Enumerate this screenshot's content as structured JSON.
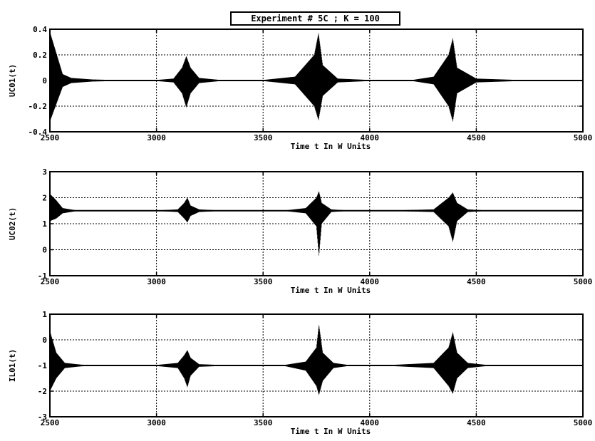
{
  "title": "Experiment # 5C ; K = 100",
  "chart_data": [
    {
      "type": "line",
      "ylabel": "UC01(t)",
      "xlabel": "Time t In W Units",
      "xlim": [
        2500,
        5000
      ],
      "ylim": [
        -0.4,
        0.4
      ],
      "xticks": [
        2500,
        3000,
        3500,
        4000,
        4500,
        5000
      ],
      "yticks": [
        -0.4,
        -0.2,
        0,
        0.2,
        0.4
      ],
      "ytick_labels": [
        "-0.4",
        "-0.2",
        "0",
        "0.2",
        "0.4"
      ],
      "grid": true,
      "baseline": 0,
      "envelope_x": [
        2500,
        2560,
        2600,
        2700,
        2800,
        3000,
        3080,
        3120,
        3140,
        3160,
        3200,
        3300,
        3500,
        3650,
        3740,
        3760,
        3780,
        3850,
        4000,
        4200,
        4300,
        4370,
        4390,
        4410,
        4500,
        4700,
        5000
      ],
      "envelope_upper": [
        0.38,
        0.05,
        0.02,
        0.008,
        0.004,
        0.004,
        0.015,
        0.1,
        0.19,
        0.1,
        0.02,
        0.004,
        0.004,
        0.03,
        0.2,
        0.37,
        0.12,
        0.015,
        0.004,
        0.004,
        0.03,
        0.2,
        0.33,
        0.1,
        0.015,
        0.004,
        0.004
      ],
      "envelope_lower": [
        -0.32,
        -0.05,
        -0.02,
        -0.008,
        -0.004,
        -0.004,
        -0.015,
        -0.1,
        -0.21,
        -0.1,
        -0.02,
        -0.004,
        -0.004,
        -0.03,
        -0.2,
        -0.31,
        -0.12,
        -0.015,
        -0.004,
        -0.004,
        -0.03,
        -0.2,
        -0.32,
        -0.1,
        -0.015,
        -0.004,
        -0.004
      ]
    },
    {
      "type": "line",
      "ylabel": "UC02(t)",
      "xlabel": "Time t In W Units",
      "xlim": [
        2500,
        5000
      ],
      "ylim": [
        -1,
        3
      ],
      "xticks": [
        2500,
        3000,
        3500,
        4000,
        4500,
        5000
      ],
      "yticks": [
        -1,
        0,
        1,
        2,
        3
      ],
      "ytick_labels": [
        "-1",
        "0",
        "1",
        "2",
        "3"
      ],
      "grid": true,
      "baseline": 1.5,
      "envelope_x": [
        2500,
        2530,
        2560,
        2620,
        2700,
        3000,
        3100,
        3130,
        3145,
        3160,
        3200,
        3300,
        3600,
        3700,
        3750,
        3762,
        3775,
        3820,
        3900,
        4100,
        4300,
        4370,
        4390,
        4410,
        4460,
        4550,
        5000
      ],
      "envelope_upper": [
        2.15,
        1.9,
        1.6,
        1.52,
        1.51,
        1.51,
        1.55,
        1.8,
        2.0,
        1.7,
        1.55,
        1.51,
        1.51,
        1.6,
        2.0,
        2.25,
        1.8,
        1.55,
        1.51,
        1.51,
        1.55,
        2.0,
        2.2,
        1.8,
        1.55,
        1.51,
        1.51
      ],
      "envelope_lower": [
        1.1,
        1.2,
        1.4,
        1.48,
        1.49,
        1.49,
        1.45,
        1.2,
        1.05,
        1.3,
        1.45,
        1.49,
        1.49,
        1.4,
        0.9,
        -0.25,
        1.0,
        1.45,
        1.49,
        1.49,
        1.45,
        0.9,
        0.3,
        1.1,
        1.45,
        1.49,
        1.49
      ]
    },
    {
      "type": "line",
      "ylabel": "IL01(t)",
      "xlabel": "Time t In W Units",
      "xlim": [
        2500,
        5000
      ],
      "ylim": [
        -3,
        1
      ],
      "xticks": [
        2500,
        3000,
        3500,
        4000,
        4500,
        5000
      ],
      "yticks": [
        -3,
        -2,
        -1,
        0,
        1
      ],
      "ytick_labels": [
        "-3",
        "-2",
        "-1",
        "0",
        "1"
      ],
      "grid": true,
      "baseline": -1,
      "envelope_x": [
        2500,
        2530,
        2570,
        2650,
        2800,
        3000,
        3100,
        3130,
        3145,
        3160,
        3200,
        3300,
        3600,
        3700,
        3750,
        3762,
        3780,
        3830,
        3900,
        4100,
        4300,
        4370,
        4390,
        4410,
        4460,
        4550,
        5000
      ],
      "envelope_upper": [
        0.35,
        -0.5,
        -0.9,
        -0.97,
        -0.98,
        -0.98,
        -0.9,
        -0.6,
        -0.4,
        -0.7,
        -0.95,
        -0.98,
        -0.98,
        -0.85,
        -0.3,
        0.6,
        -0.5,
        -0.9,
        -0.98,
        -0.98,
        -0.9,
        -0.3,
        0.3,
        -0.5,
        -0.9,
        -0.98,
        -0.98
      ],
      "envelope_lower": [
        -2.0,
        -1.5,
        -1.1,
        -1.03,
        -1.02,
        -1.02,
        -1.1,
        -1.5,
        -1.85,
        -1.4,
        -1.05,
        -1.02,
        -1.02,
        -1.2,
        -1.8,
        -2.15,
        -1.6,
        -1.1,
        -1.02,
        -1.02,
        -1.1,
        -1.8,
        -2.1,
        -1.5,
        -1.1,
        -1.02,
        -1.02
      ]
    }
  ]
}
